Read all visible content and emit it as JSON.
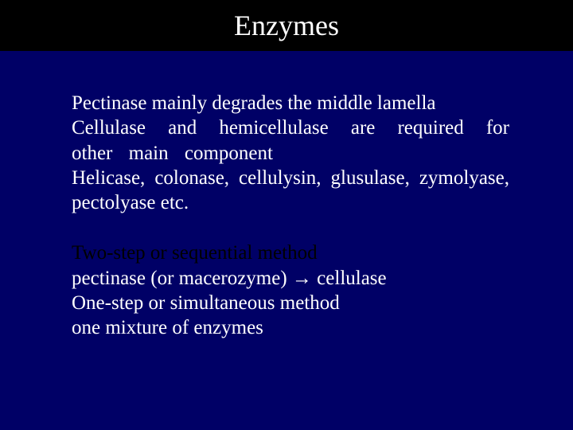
{
  "slide": {
    "title": "Enzymes",
    "background_color": "#000066",
    "title_bar_color": "#000000",
    "text_color": "#ffffff",
    "accent_color": "#000000",
    "font_family": "Times New Roman",
    "title_fontsize": 36,
    "body_fontsize": 25,
    "para1": {
      "line1": "Pectinase mainly degrades the middle lamella",
      "line2": "Cellulase and hemicellulase are required for other main component",
      "line3": "Helicase, colonase, cellulysin, glusulase, zymolyase, pectolyase etc."
    },
    "para2": {
      "heading": "Two-step or sequential method",
      "line1": "pectinase (or macerozyme) → cellulase",
      "line2": "One-step or simultaneous method",
      "line3": "one mixture of enzymes"
    }
  }
}
